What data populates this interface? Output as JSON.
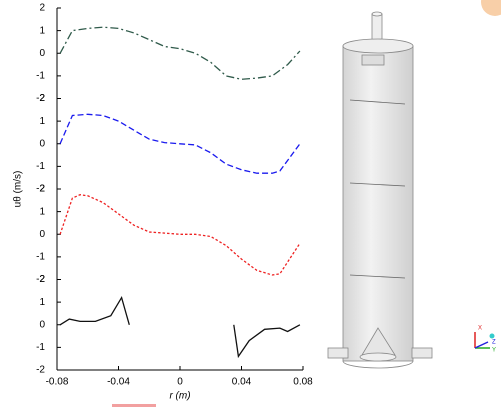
{
  "chart_data": {
    "type": "line",
    "x_label": "r (m)",
    "y_label": "uθ (m/s)",
    "xlim": [
      -0.08,
      0.08
    ],
    "xticks": [
      -0.08,
      -0.04,
      0,
      0.04,
      0.08
    ],
    "panels": [
      {
        "ylim": [
          -2,
          2
        ],
        "yticks": [
          -2,
          -1,
          0,
          1,
          2
        ],
        "x": [
          -0.078,
          -0.07,
          -0.06,
          -0.05,
          -0.04,
          -0.03,
          -0.02,
          -0.01,
          0,
          0.01,
          0.02,
          0.03,
          0.04,
          0.05,
          0.06,
          0.07,
          0.078
        ],
        "series": [
          {
            "color": "#2f5a4a",
            "dash": "dashdot",
            "values": [
              0.0,
              1.0,
              1.1,
              1.15,
              1.1,
              0.9,
              0.6,
              0.3,
              0.2,
              0.0,
              -0.4,
              -1.0,
              -1.15,
              -1.1,
              -1.0,
              -0.5,
              0.1
            ]
          }
        ]
      },
      {
        "ylim": [
          -2,
          2
        ],
        "yticks": [
          -2,
          -1,
          0,
          1,
          2
        ],
        "x": [
          -0.078,
          -0.07,
          -0.06,
          -0.05,
          -0.04,
          -0.03,
          -0.02,
          -0.01,
          0,
          0.01,
          0.02,
          0.03,
          0.04,
          0.05,
          0.06,
          0.065,
          0.078
        ],
        "series": [
          {
            "color": "#1a1aee",
            "dash": "dashed",
            "values": [
              0.0,
              1.25,
              1.3,
              1.25,
              1.0,
              0.6,
              0.2,
              0.05,
              0.0,
              -0.05,
              -0.4,
              -0.9,
              -1.15,
              -1.3,
              -1.3,
              -1.2,
              0.0
            ]
          }
        ]
      },
      {
        "ylim": [
          -2,
          2
        ],
        "yticks": [
          -2,
          -1,
          0,
          1,
          2
        ],
        "x": [
          -0.078,
          -0.07,
          -0.065,
          -0.06,
          -0.05,
          -0.04,
          -0.03,
          -0.02,
          -0.01,
          0,
          0.01,
          0.02,
          0.03,
          0.04,
          0.05,
          0.06,
          0.065,
          0.078
        ],
        "series": [
          {
            "color": "#ee2222",
            "dash": "dotted",
            "values": [
              0.0,
              1.6,
              1.75,
              1.7,
              1.4,
              0.9,
              0.4,
              0.1,
              0.05,
              0.0,
              0.0,
              -0.1,
              -0.5,
              -1.1,
              -1.6,
              -1.8,
              -1.75,
              -0.4
            ]
          }
        ]
      },
      {
        "ylim": [
          -2,
          2
        ],
        "yticks": [
          -2,
          -1,
          0,
          1,
          2
        ],
        "x": [
          -0.078,
          -0.072,
          -0.065,
          -0.055,
          -0.045,
          -0.038,
          -0.033,
          0,
          0.035,
          0.038,
          0.045,
          0.055,
          0.065,
          0.07,
          0.078
        ],
        "series": [
          {
            "color": "#111111",
            "dash": "solid",
            "values": [
              0.0,
              0.25,
              0.15,
              0.15,
              0.4,
              1.2,
              0.0,
              null,
              0.0,
              -1.4,
              -0.7,
              -0.2,
              -0.15,
              -0.3,
              0.0
            ]
          }
        ]
      }
    ]
  },
  "triad": [
    "X",
    "Y",
    "Z"
  ]
}
